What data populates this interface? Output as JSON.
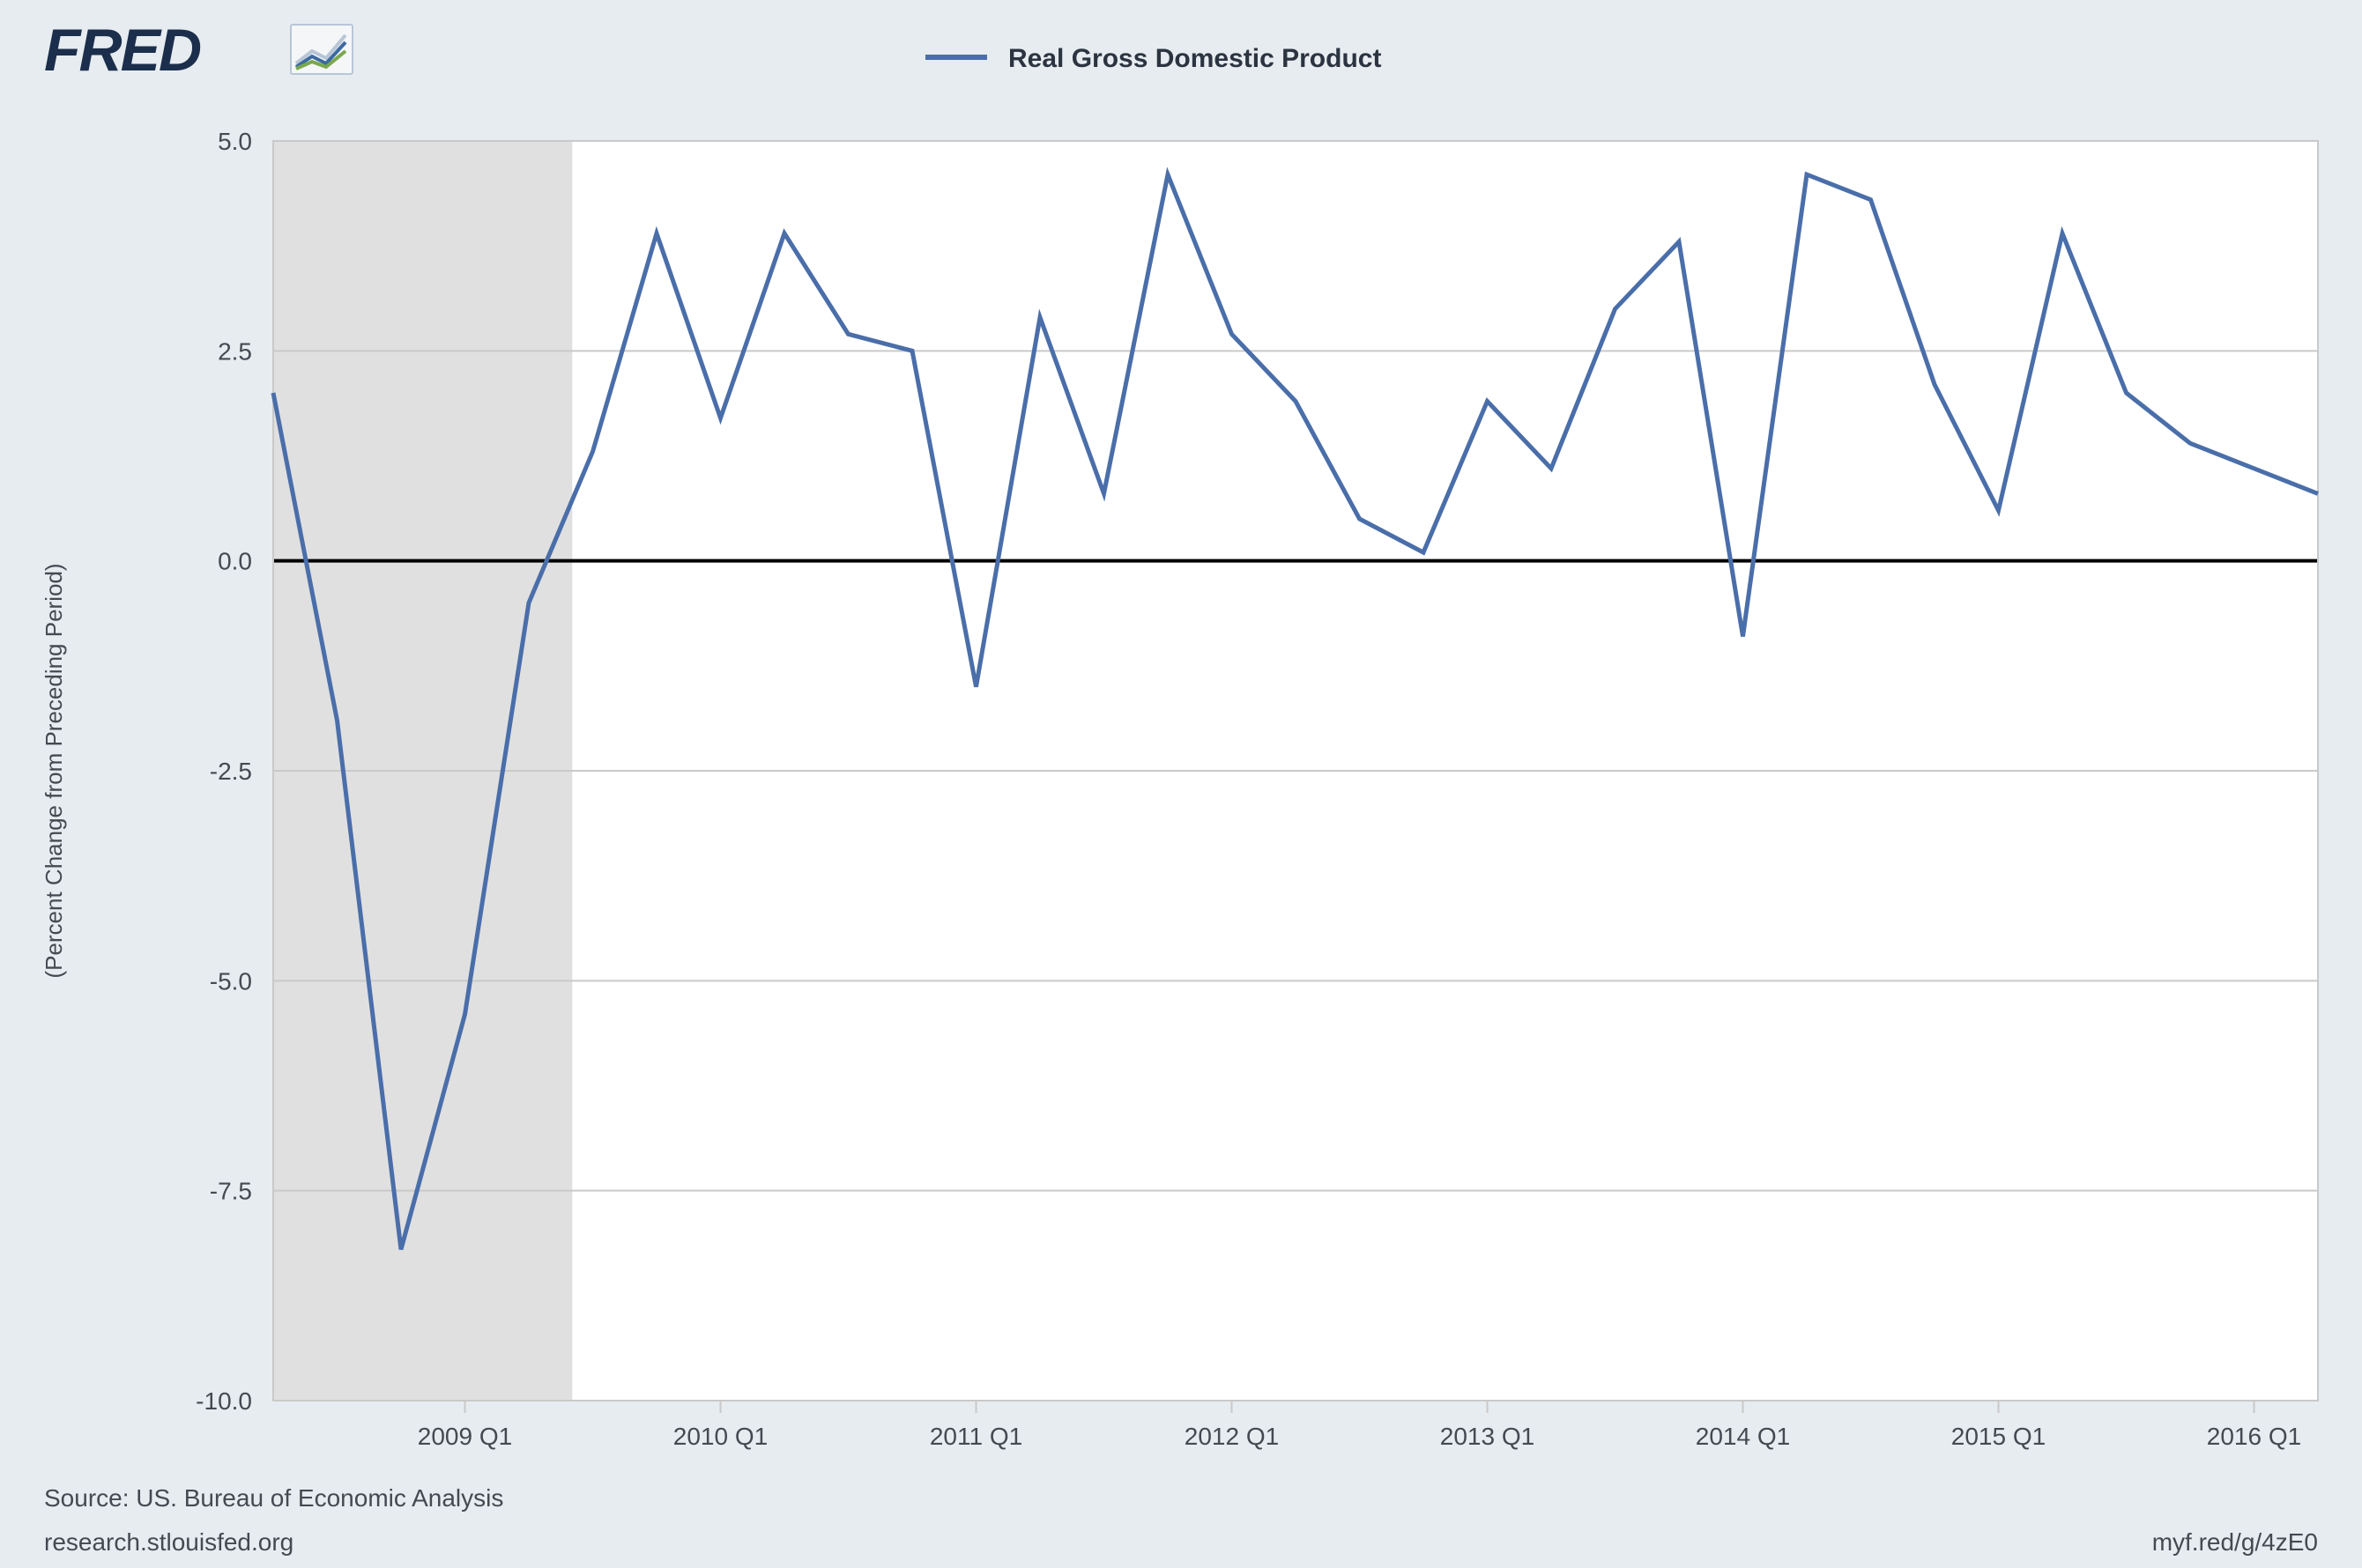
{
  "logo": {
    "text": "FRED",
    "color": "#1b2e4b",
    "icon_colors": [
      "#b8c6d6",
      "#3c6aa0",
      "#7aa84d"
    ]
  },
  "legend": {
    "label": "Real Gross Domestic Product",
    "color": "#4a6ea9",
    "fontsize": 30
  },
  "chart": {
    "type": "line",
    "background_color": "#ffffff",
    "outer_background": "#e7ecf0",
    "grid_color": "#c9c9c9",
    "zero_line_color": "#000000",
    "recession_band_color": "#e0e0e0",
    "line_color": "#4a6ea9",
    "line_width": 5,
    "ylim": [
      -10,
      5
    ],
    "ytick_step": 2.5,
    "yticks": [
      "-10.0",
      "-7.5",
      "-5.0",
      "-2.5",
      "0.0",
      "2.5",
      "5.0"
    ],
    "ylabel": "(Percent Change from Preceding Period)",
    "ylabel_fontsize": 26,
    "axis_fontsize": 28,
    "x_start": 2008.25,
    "x_end": 2016.25,
    "xtick_positions": [
      2009.0,
      2010.0,
      2011.0,
      2012.0,
      2013.0,
      2014.0,
      2015.0,
      2016.0
    ],
    "xtick_labels": [
      "2009 Q1",
      "2010 Q1",
      "2011 Q1",
      "2012 Q1",
      "2013 Q1",
      "2014 Q1",
      "2015 Q1",
      "2016 Q1"
    ],
    "recession_band": {
      "start": 2008.25,
      "end": 2009.42
    },
    "series": {
      "x": [
        2008.25,
        2008.5,
        2008.75,
        2009.0,
        2009.25,
        2009.5,
        2009.75,
        2010.0,
        2010.25,
        2010.5,
        2010.75,
        2011.0,
        2011.25,
        2011.5,
        2011.75,
        2012.0,
        2012.25,
        2012.5,
        2012.75,
        2013.0,
        2013.25,
        2013.5,
        2013.75,
        2014.0,
        2014.25,
        2014.5,
        2014.75,
        2015.0,
        2015.25,
        2015.5,
        2015.75,
        2016.0,
        2016.25
      ],
      "y": [
        2.0,
        -1.9,
        -8.2,
        -5.4,
        -0.5,
        1.3,
        3.9,
        1.7,
        3.9,
        2.7,
        2.5,
        -1.5,
        2.9,
        0.8,
        4.6,
        2.7,
        1.9,
        0.5,
        0.1,
        1.9,
        1.1,
        3.0,
        3.8,
        -0.9,
        4.6,
        4.3,
        2.1,
        0.6,
        3.9,
        2.0,
        1.4,
        1.1,
        0.8
      ]
    }
  },
  "footer": {
    "source": "Source: US. Bureau of Economic Analysis",
    "site": "research.stlouisfed.org",
    "short_link": "myf.red/g/4zE0",
    "fontsize": 28,
    "color": "#444a52"
  }
}
